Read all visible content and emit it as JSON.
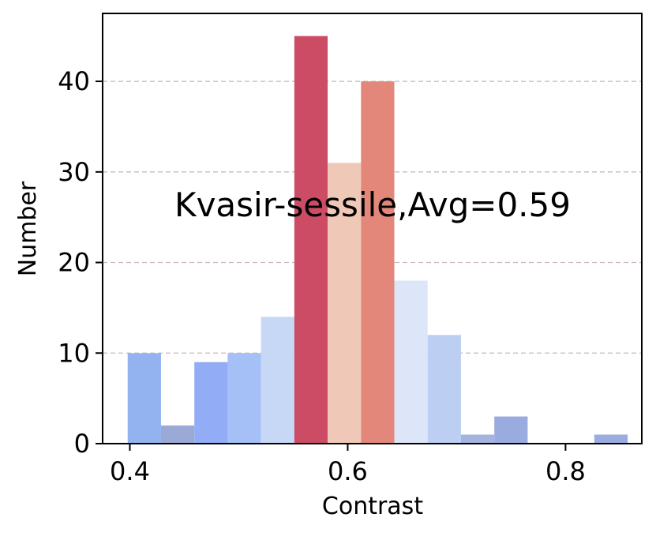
{
  "chart_data": {
    "type": "bar",
    "xlabel": "Contrast",
    "ylabel": "Number",
    "annotation": "Kvasir-sessile,Avg=0.59",
    "xlim": [
      0.375,
      0.87
    ],
    "ylim": [
      0,
      47.5
    ],
    "x_ticks": [
      0.4,
      0.6,
      0.8
    ],
    "x_tick_labels": [
      "0.4",
      "0.6",
      "0.8"
    ],
    "y_ticks": [
      0,
      10,
      20,
      30,
      40
    ],
    "y_tick_labels": [
      "0",
      "10",
      "20",
      "30",
      "40"
    ],
    "grid": "horizontal dashed",
    "bin_width": 0.0306,
    "bins": [
      {
        "x": 0.398,
        "value": 10,
        "color": "#93b3f0"
      },
      {
        "x": 0.4286,
        "value": 2,
        "color": "#9aa9d6"
      },
      {
        "x": 0.4592,
        "value": 9,
        "color": "#92adf5"
      },
      {
        "x": 0.4898,
        "value": 10,
        "color": "#a5c0f6"
      },
      {
        "x": 0.5204,
        "value": 14,
        "color": "#c7d7f6"
      },
      {
        "x": 0.551,
        "value": 45,
        "color": "#cb4c64"
      },
      {
        "x": 0.5816,
        "value": 31,
        "color": "#f0c8b8"
      },
      {
        "x": 0.6122,
        "value": 40,
        "color": "#e3877b"
      },
      {
        "x": 0.6428,
        "value": 18,
        "color": "#dde6f8"
      },
      {
        "x": 0.6734,
        "value": 12,
        "color": "#bccff3"
      },
      {
        "x": 0.704,
        "value": 1,
        "color": "#a5b4de"
      },
      {
        "x": 0.7346,
        "value": 3,
        "color": "#9aabdf"
      },
      {
        "x": 0.7652,
        "value": 0,
        "color": "#ffffff"
      },
      {
        "x": 0.7958,
        "value": 0,
        "color": "#ffffff"
      },
      {
        "x": 0.8264,
        "value": 1,
        "color": "#9aabdf"
      }
    ]
  }
}
